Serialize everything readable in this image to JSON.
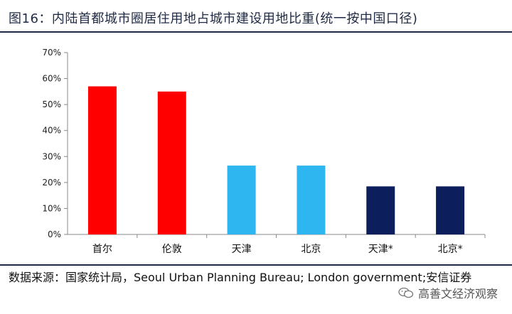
{
  "figure": {
    "title": "图16：内陆首都城市圈居住用地占城市建设用地比重(统一按中国口径)",
    "source": "数据来源：国家统计局，Seoul Urban Planning Bureau; London government;安信证券",
    "watermark": "高善文经济观察"
  },
  "chart_data": {
    "type": "bar",
    "title": "",
    "xlabel": "",
    "ylabel": "",
    "categories": [
      "首尔",
      "伦敦",
      "天津",
      "北京",
      "天津*",
      "北京*"
    ],
    "values": [
      57,
      55,
      26.5,
      26.5,
      18.5,
      18.5
    ],
    "colors": [
      "#ff0000",
      "#ff0000",
      "#2eb6f0",
      "#2eb6f0",
      "#0d1e5c",
      "#0d1e5c"
    ],
    "yticks": [
      "0%",
      "10%",
      "20%",
      "30%",
      "40%",
      "50%",
      "60%",
      "70%"
    ],
    "ylim": [
      0,
      70
    ],
    "unit": "%",
    "grid": false,
    "legend": "none"
  }
}
